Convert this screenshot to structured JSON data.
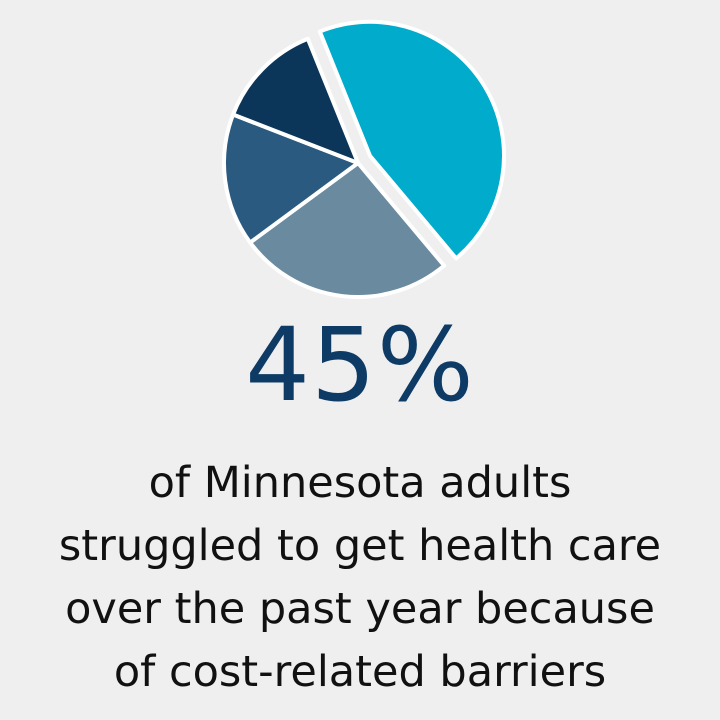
{
  "chart_data": {
    "type": "pie",
    "title": "",
    "values": [
      45,
      26,
      16,
      13
    ],
    "highlight_index": 0,
    "colors": [
      "#00abcc",
      "#6a8aa0",
      "#2b5a80",
      "#0b3559"
    ],
    "legend": "none"
  },
  "stat": {
    "value": "45%",
    "color": "#0d3b66"
  },
  "caption": {
    "lines": [
      "of Minnesota adults",
      "struggled to get health care",
      "over the past year because",
      "of cost-related barriers"
    ]
  }
}
